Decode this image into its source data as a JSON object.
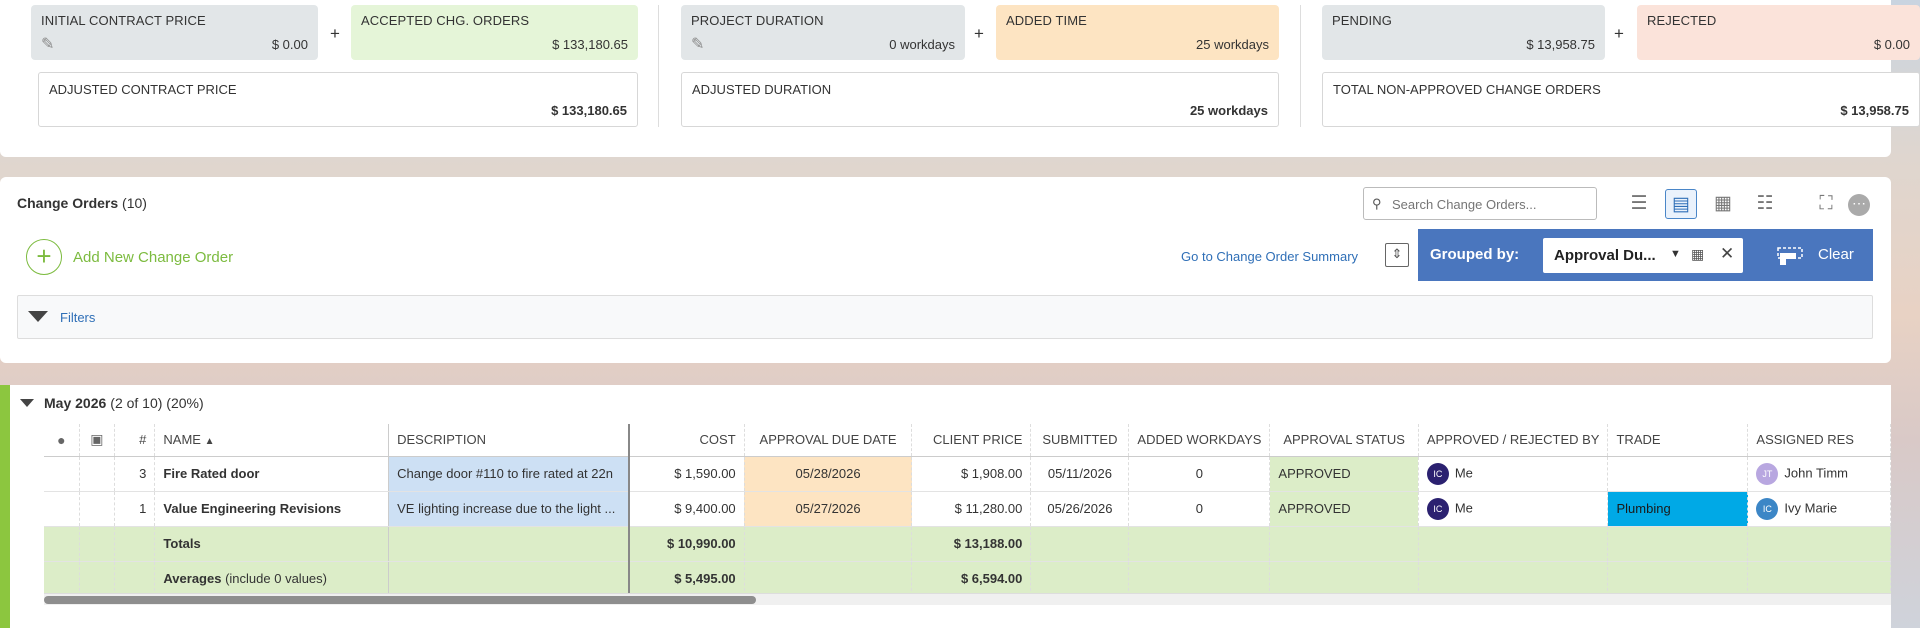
{
  "summary": {
    "initial_contract_price": {
      "label": "INITIAL CONTRACT PRICE",
      "value": "$ 0.00"
    },
    "accepted_chg_orders": {
      "label": "ACCEPTED CHG. ORDERS",
      "value": "$ 133,180.65"
    },
    "adjusted_contract_price": {
      "label": "ADJUSTED CONTRACT PRICE",
      "value": "$ 133,180.65"
    },
    "project_duration": {
      "label": "PROJECT DURATION",
      "value": "0 workdays"
    },
    "added_time": {
      "label": "ADDED TIME",
      "value": "25 workdays"
    },
    "adjusted_duration": {
      "label": "ADJUSTED DURATION",
      "value": "25 workdays"
    },
    "pending": {
      "label": "PENDING",
      "value": "$ 13,958.75"
    },
    "rejected": {
      "label": "REJECTED",
      "value": "$ 0.00"
    },
    "total_non_approved": {
      "label": "TOTAL NON-APPROVED CHANGE ORDERS",
      "value": "$ 13,958.75"
    },
    "plus": "+"
  },
  "change_orders": {
    "title": "Change Orders",
    "count": "(10)",
    "search_placeholder": "Search Change Orders...",
    "add_label": "Add New Change Order",
    "goto_summary": "Go to Change Order Summary",
    "grouped_by_label": "Grouped by:",
    "grouped_by_value": "Approval Du...",
    "clear_label": "Clear",
    "filters_label": "Filters"
  },
  "group": {
    "title": "May 2026",
    "meta": "(2 of 10) (20%)"
  },
  "table": {
    "headers": {
      "num": "#",
      "name": "NAME",
      "sort_arrow": "▲",
      "description": "DESCRIPTION",
      "cost": "COST",
      "approval_due_date": "APPROVAL DUE DATE",
      "client_price": "CLIENT PRICE",
      "submitted": "SUBMITTED",
      "added_workdays": "ADDED WORKDAYS",
      "approval_status": "APPROVAL STATUS",
      "approved_by": "APPROVED / REJECTED BY",
      "trade": "TRADE",
      "assigned": "ASSIGNED RES"
    },
    "rows": [
      {
        "num": "3",
        "name": "Fire Rated door",
        "description": "Change door #110 to fire rated at 22n",
        "cost": "$ 1,590.00",
        "due": "05/28/2026",
        "client_price": "$ 1,908.00",
        "submitted": "05/11/2026",
        "added_workdays": "0",
        "status": "APPROVED",
        "approver_initials": "IC",
        "approver": "Me",
        "trade": "",
        "assigned_initials": "JT",
        "assigned": "John Timm"
      },
      {
        "num": "1",
        "name": "Value Engineering Revisions",
        "description": "VE lighting increase due to the light ...",
        "cost": "$ 9,400.00",
        "due": "05/27/2026",
        "client_price": "$ 11,280.00",
        "submitted": "05/26/2026",
        "added_workdays": "0",
        "status": "APPROVED",
        "approver_initials": "IC",
        "approver": "Me",
        "trade": "Plumbing",
        "assigned_initials": "IC",
        "assigned": "Ivy Marie"
      }
    ],
    "totals": {
      "label": "Totals",
      "cost": "$ 10,990.00",
      "client_price": "$ 13,188.00"
    },
    "averages": {
      "label": "Averages",
      "note": "(include 0 values)",
      "cost": "$ 5,495.00",
      "client_price": "$ 6,594.00"
    }
  },
  "colors": {
    "accent_blue": "#4a76be",
    "add_green": "#7cbb3f",
    "approved_bg": "#dcedc8",
    "trade_plumbing": "#00a9e6"
  },
  "icons": [
    "pencil-icon",
    "search-icon",
    "list-view-icon",
    "detail-view-icon",
    "column-view-icon",
    "grid-view-icon",
    "fullscreen-icon",
    "more-icon",
    "add-icon",
    "expand-rows-icon",
    "calculator-icon",
    "close-icon",
    "eraser-icon",
    "traffic-light-icon",
    "comment-icon"
  ]
}
